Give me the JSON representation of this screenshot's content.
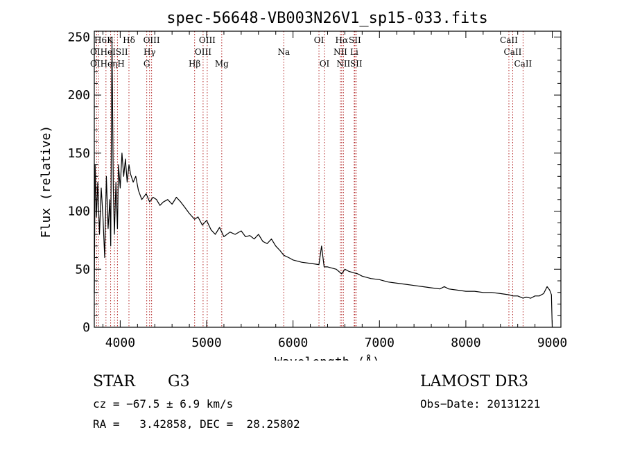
{
  "chart_data": {
    "type": "line",
    "title": "spec-56648-VB003N26V1_sp15-033.fits",
    "xlabel": "Wavelength (Å)",
    "ylabel": "Flux (relative)",
    "xlim": [
      3700,
      9100
    ],
    "ylim": [
      0,
      255
    ],
    "xticks": [
      4000,
      5000,
      6000,
      7000,
      8000,
      9000
    ],
    "yticks": [
      0,
      50,
      100,
      150,
      200,
      250
    ],
    "series": [
      {
        "name": "spectrum",
        "x": [
          3700,
          3710,
          3725,
          3740,
          3760,
          3780,
          3800,
          3820,
          3840,
          3860,
          3880,
          3890,
          3905,
          3920,
          3933,
          3950,
          3968,
          3980,
          4000,
          4020,
          4040,
          4060,
          4080,
          4101,
          4120,
          4150,
          4180,
          4210,
          4250,
          4300,
          4340,
          4380,
          4420,
          4460,
          4500,
          4550,
          4600,
          4650,
          4700,
          4750,
          4800,
          4861,
          4900,
          4950,
          5000,
          5050,
          5100,
          5150,
          5200,
          5270,
          5330,
          5400,
          5450,
          5500,
          5550,
          5600,
          5650,
          5700,
          5750,
          5800,
          5850,
          5893,
          5950,
          6000,
          6100,
          6200,
          6300,
          6330,
          6360,
          6400,
          6500,
          6563,
          6600,
          6650,
          6700,
          6750,
          6800,
          6900,
          7000,
          7100,
          7200,
          7300,
          7400,
          7500,
          7600,
          7700,
          7750,
          7800,
          7900,
          8000,
          8100,
          8200,
          8300,
          8400,
          8498,
          8542,
          8600,
          8662,
          8700,
          8750,
          8800,
          8850,
          8900,
          8940,
          8970,
          8990,
          9000
        ],
        "y": [
          30,
          140,
          95,
          125,
          80,
          120,
          95,
          60,
          130,
          85,
          110,
          70,
          250,
          120,
          80,
          125,
          85,
          140,
          120,
          150,
          130,
          145,
          125,
          140,
          132,
          125,
          130,
          118,
          110,
          115,
          108,
          112,
          110,
          105,
          108,
          110,
          106,
          112,
          108,
          103,
          98,
          93,
          95,
          88,
          92,
          84,
          80,
          86,
          78,
          82,
          80,
          83,
          78,
          79,
          76,
          80,
          74,
          72,
          76,
          70,
          66,
          62,
          60,
          58,
          56,
          55,
          54,
          70,
          52,
          52,
          50,
          46,
          50,
          48,
          47,
          46,
          44,
          42,
          41,
          39,
          38,
          37,
          36,
          35,
          34,
          33,
          35,
          33,
          32,
          31,
          31,
          30,
          30,
          29,
          28,
          27,
          27,
          25,
          26,
          25,
          27,
          27,
          29,
          35,
          32,
          28,
          0
        ]
      }
    ],
    "lines": [
      {
        "label": "Hδ",
        "wl": 4101,
        "row": 1
      },
      {
        "label": "Hγ",
        "wl": 4340,
        "row": 2
      },
      {
        "label": "G",
        "wl": 4307,
        "row": 3
      },
      {
        "label": "OIII",
        "wl": 4363,
        "row": 1
      },
      {
        "label": "Hβ",
        "wl": 4861,
        "row": 3
      },
      {
        "label": "OIII",
        "wl": 4959,
        "row": 2
      },
      {
        "label": "OIII",
        "wl": 5007,
        "row": 1
      },
      {
        "label": "Mg",
        "wl": 5175,
        "row": 3
      },
      {
        "label": "Na",
        "wl": 5893,
        "row": 2
      },
      {
        "label": "OI",
        "wl": 6300,
        "row": 1
      },
      {
        "label": "OI",
        "wl": 6364,
        "row": 3
      },
      {
        "label": "NII",
        "wl": 6548,
        "row": 2
      },
      {
        "label": "Hα",
        "wl": 6563,
        "row": 1
      },
      {
        "label": "NII",
        "wl": 6583,
        "row": 3
      },
      {
        "label": "SII",
        "wl": 6716,
        "row": 1
      },
      {
        "label": "SII",
        "wl": 6731,
        "row": 3
      },
      {
        "label": "Li",
        "wl": 6708,
        "row": 2
      },
      {
        "label": "CaII",
        "wl": 8498,
        "row": 1
      },
      {
        "label": "CaII",
        "wl": 8542,
        "row": 2
      },
      {
        "label": "CaII",
        "wl": 8662,
        "row": 3
      }
    ],
    "crowded_labels": [
      {
        "text": "H6K",
        "wl": 3720,
        "row": 1
      },
      {
        "text": "OIHeISII",
        "wl": 3720,
        "row": 2
      },
      {
        "text": "OIHeηH",
        "wl": 3720,
        "row": 3
      }
    ],
    "crowded_lines": [
      3727,
      3750,
      3835,
      3889,
      3933,
      3968
    ]
  },
  "footer": {
    "object_type": "STAR",
    "subclass": "G3",
    "survey": "LAMOST DR3",
    "redshift": "cz = −67.5 ± 6.9 km/s",
    "obs_date": "Obs−Date: 20131221",
    "coords": "RA =   3.42858, DEC =  28.25802"
  }
}
